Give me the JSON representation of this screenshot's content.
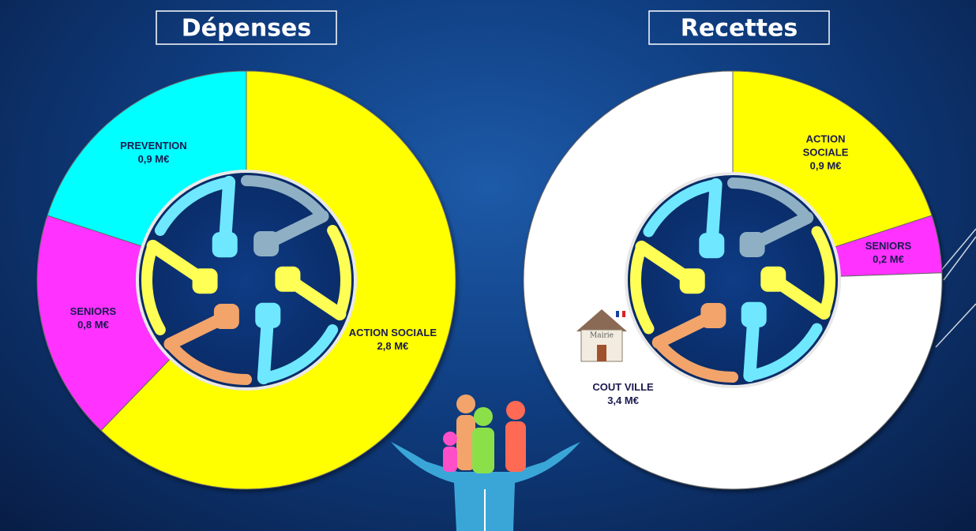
{
  "chart_data": [
    {
      "type": "donut",
      "title": "Dépenses",
      "categories": [
        "ACTION SOCIALE",
        "SENIORS",
        "PREVENTION"
      ],
      "values": [
        2.8,
        0.8,
        0.9
      ],
      "value_labels": [
        "2,8 M€",
        "0,8 M€",
        "0,9 M€"
      ],
      "colors": [
        "#ffff00",
        "#ff33ff",
        "#00ffff"
      ]
    },
    {
      "type": "donut",
      "title": "Recettes",
      "categories": [
        "ACTION SOCIALE",
        "SENIORS",
        "COUT VILLE"
      ],
      "values": [
        0.9,
        0.2,
        3.4
      ],
      "value_labels": [
        "0,9 M€",
        "0,2 M€",
        "3,4 M€"
      ],
      "colors": [
        "#ffff00",
        "#ff33ff",
        "#ffffff"
      ]
    }
  ],
  "decoration": {
    "building_sign": "Mairie"
  }
}
